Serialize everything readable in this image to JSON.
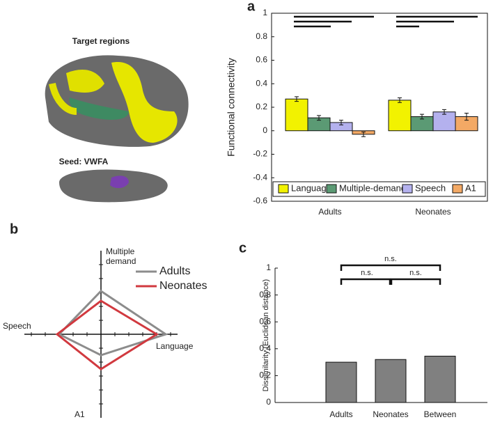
{
  "figure": {
    "brain_title": "Target regions",
    "seed_label": "Seed: VWFA"
  },
  "chart_data": [
    {
      "type": "bar",
      "panel": "a",
      "ylabel": "Functional connectivity",
      "categories": [
        "Adults",
        "Neonates"
      ],
      "series": [
        {
          "name": "Language",
          "color": "#f2f200",
          "values": [
            0.27,
            0.26
          ],
          "errors": [
            0.02,
            0.02
          ]
        },
        {
          "name": "Multiple-demand",
          "color": "#5b9a74",
          "values": [
            0.11,
            0.12
          ],
          "errors": [
            0.02,
            0.02
          ]
        },
        {
          "name": "Speech",
          "color": "#b4b1ee",
          "values": [
            0.07,
            0.16
          ],
          "errors": [
            0.02,
            0.02
          ]
        },
        {
          "name": "A1",
          "color": "#f3a965",
          "values": [
            -0.03,
            0.12
          ],
          "errors": [
            0.02,
            0.03
          ]
        }
      ],
      "ylim": [
        -0.6,
        1
      ],
      "yticks": [
        -0.6,
        -0.4,
        -0.2,
        0,
        0.2,
        0.4,
        0.6,
        0.8,
        1
      ],
      "legend": "bottom"
    },
    {
      "type": "radar",
      "panel": "b",
      "categories": [
        "Multiple demand",
        "Language",
        "A1",
        "Speech"
      ],
      "series": [
        {
          "name": "Adults",
          "color": "#8c8c8c",
          "values": [
            0.62,
            0.93,
            0.3,
            0.6
          ]
        },
        {
          "name": "Neonates",
          "color": "#d1393f",
          "values": [
            0.48,
            0.8,
            0.5,
            0.63
          ]
        }
      ],
      "rlim": [
        0,
        1
      ],
      "rticks": [
        0.2,
        0.4,
        0.6,
        0.8,
        1
      ]
    },
    {
      "type": "bar",
      "panel": "c",
      "ylabel": "Dissimilarity (Euclidean distance)",
      "categories": [
        "Adults",
        "Neonates",
        "Between"
      ],
      "series": [
        {
          "color": "#808080",
          "values": [
            0.3,
            0.32,
            0.345
          ]
        }
      ],
      "ylim": [
        0,
        1
      ],
      "yticks": [
        0,
        0.2,
        0.4,
        0.6,
        0.8,
        1
      ],
      "annotations": [
        "n.s.",
        "n.s.",
        "n.s."
      ]
    }
  ]
}
